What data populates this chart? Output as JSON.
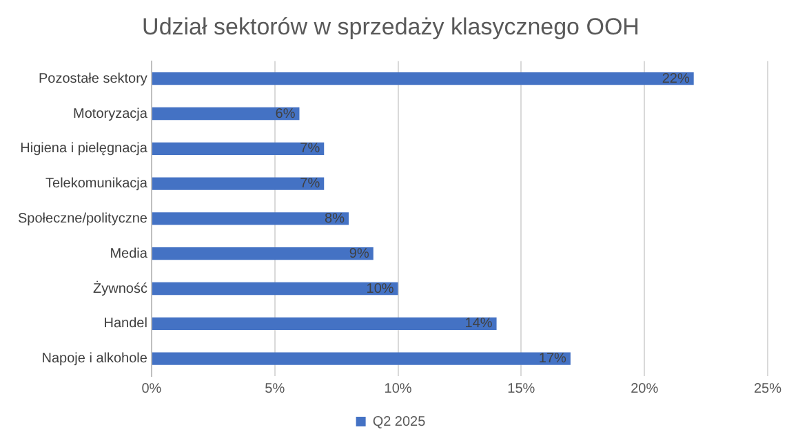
{
  "chart_data": {
    "type": "bar",
    "orientation": "horizontal",
    "title": "Udział sektorów w sprzedaży klasycznego OOH",
    "categories": [
      "Pozostałe sektory",
      "Motoryzacja",
      "Higiena i pielęgnacja",
      "Telekomunikacja",
      "Społeczne/polityczne",
      "Media",
      "Żywność",
      "Handel",
      "Napoje i alkohole"
    ],
    "series": [
      {
        "name": "Q2 2025",
        "color": "#4472c4",
        "values": [
          22,
          6,
          7,
          7,
          8,
          9,
          10,
          14,
          17
        ],
        "value_labels": [
          "22%",
          "6%",
          "7%",
          "7%",
          "8%",
          "9%",
          "10%",
          "14%",
          "17%"
        ]
      }
    ],
    "xlim": [
      0,
      25
    ],
    "xticks": [
      {
        "value": 0,
        "label": "0%"
      },
      {
        "value": 5,
        "label": "5%"
      },
      {
        "value": 10,
        "label": "10%"
      },
      {
        "value": 15,
        "label": "15%"
      },
      {
        "value": 20,
        "label": "20%"
      },
      {
        "value": 25,
        "label": "25%"
      }
    ],
    "grid": "x",
    "legend": "bottom"
  }
}
